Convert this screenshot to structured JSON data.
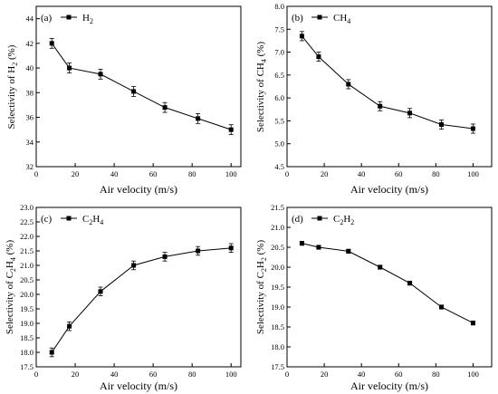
{
  "chart_data": [
    {
      "type": "line",
      "panel_label": "(a)",
      "legend": {
        "prefix": "H",
        "subscript": "2",
        "placement": "top-left"
      },
      "ylabel": {
        "pre": "Selectivity of H",
        "sub": "2",
        "post": " (%)"
      },
      "xlabel": "Air velocity (m/s)",
      "xlim": [
        0,
        105
      ],
      "xticks": [
        0,
        20,
        40,
        60,
        80,
        100
      ],
      "ylim": [
        32,
        45
      ],
      "yticks": [
        32,
        34,
        36,
        38,
        40,
        42,
        44
      ],
      "x": [
        8,
        17,
        33,
        50,
        66,
        83,
        100
      ],
      "y": [
        42.0,
        40.0,
        39.5,
        38.1,
        36.8,
        35.9,
        35.0
      ],
      "yerr": 0.4
    },
    {
      "type": "line",
      "panel_label": "(b)",
      "legend": {
        "prefix": "CH",
        "subscript": "4",
        "placement": "top-left"
      },
      "ylabel": {
        "pre": "Selectivity of CH",
        "sub": "4",
        "post": " (%)"
      },
      "xlabel": "Air velocity (m/s)",
      "xlim": [
        0,
        110
      ],
      "xticks": [
        0,
        20,
        40,
        60,
        80,
        100
      ],
      "ylim": [
        4.5,
        8.0
      ],
      "yticks": [
        4.5,
        5.0,
        5.5,
        6.0,
        6.5,
        7.0,
        7.5,
        8.0
      ],
      "x": [
        8,
        17,
        33,
        50,
        66,
        83,
        100
      ],
      "y": [
        7.35,
        6.9,
        6.3,
        5.82,
        5.67,
        5.42,
        5.33
      ],
      "yerr": 0.1
    },
    {
      "type": "line",
      "panel_label": "(c)",
      "legend": {
        "prefix": "C",
        "subscript": "2",
        "mid": "H",
        "subscript2": "4",
        "placement": "top-left"
      },
      "ylabel": {
        "pre": "Selectivity of C",
        "sub": "2",
        "mid": "H",
        "sub2": "4",
        "post": " (%)"
      },
      "xlabel": "Air velocity (m/s)",
      "xlim": [
        0,
        105
      ],
      "xticks": [
        0,
        20,
        40,
        60,
        80,
        100
      ],
      "ylim": [
        17.5,
        23.0
      ],
      "yticks": [
        17.5,
        18.0,
        18.5,
        19.0,
        19.5,
        20.0,
        20.5,
        21.0,
        21.5,
        22.0,
        22.5,
        23.0
      ],
      "x": [
        8,
        17,
        33,
        50,
        66,
        83,
        100
      ],
      "y": [
        18.0,
        18.9,
        20.1,
        21.0,
        21.3,
        21.5,
        21.6
      ],
      "yerr": 0.15
    },
    {
      "type": "line",
      "panel_label": "(d)",
      "legend": {
        "prefix": "C",
        "subscript": "2",
        "mid": "H",
        "subscript2": "2",
        "placement": "top-left"
      },
      "ylabel": {
        "pre": "Selectivity of C",
        "sub": "2",
        "mid": "H",
        "sub2": "2",
        "post": " (%)"
      },
      "xlabel": "Air velocity (m/s)",
      "xlim": [
        0,
        110
      ],
      "xticks": [
        0,
        20,
        40,
        60,
        80,
        100
      ],
      "ylim": [
        17.5,
        21.5
      ],
      "yticks": [
        17.5,
        18.0,
        18.5,
        19.0,
        19.5,
        20.0,
        20.5,
        21.0,
        21.5
      ],
      "x": [
        8,
        17,
        33,
        50,
        66,
        83,
        100
      ],
      "y": [
        20.6,
        20.5,
        20.4,
        20.0,
        19.6,
        19.0,
        18.6
      ],
      "yerr": 0.05
    }
  ]
}
